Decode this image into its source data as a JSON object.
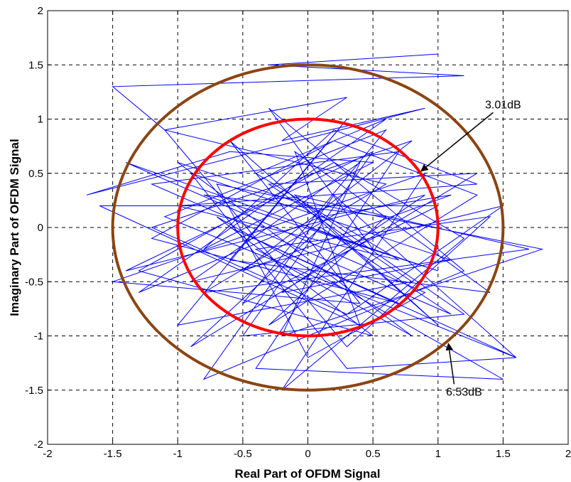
{
  "chart_data": {
    "type": "line",
    "title": "",
    "xlabel": "Real Part of OFDM Signal",
    "ylabel": "Imaginary Part of OFDM Signal",
    "xlim": [
      -2,
      2
    ],
    "ylim": [
      -2,
      2
    ],
    "grid": true,
    "xticks": [
      "-2",
      "-1.5",
      "-1",
      "-0.5",
      "0",
      "0.5",
      "1",
      "1.5",
      "2"
    ],
    "yticks": [
      "-2",
      "-1.5",
      "-1",
      "-0.5",
      "0",
      "0.5",
      "1",
      "1.5",
      "2"
    ],
    "colors": {
      "signal": "#0000ff",
      "inner_circle": "#ff0000",
      "outer_circle": "#8b4513"
    },
    "circles": [
      {
        "radius": 1.0,
        "label": "3.01dB",
        "color": "#ff0000"
      },
      {
        "radius": 1.5,
        "label": "6.53dB",
        "color": "#8b4513"
      }
    ],
    "annotations": [
      {
        "text": "3.01dB",
        "text_at": [
          1.5,
          1.1
        ],
        "arrow_to": [
          0.87,
          0.52
        ]
      },
      {
        "text": "6.53dB",
        "text_at": [
          1.2,
          -1.55
        ],
        "arrow_to": [
          1.08,
          -1.07
        ]
      }
    ],
    "series": [
      {
        "x": [
          1.0,
          -0.3,
          1.2,
          -1.5,
          -1.1,
          0.3,
          -0.2,
          0.9,
          -1.7,
          -0.6,
          0.5,
          -0.8,
          0.2,
          1.3,
          -1.0,
          0.7,
          -0.4,
          0.6,
          -1.3,
          0.1,
          1.1,
          -0.5,
          0.8,
          -1.2,
          0.3,
          1.5,
          -0.9,
          0.4,
          -0.2,
          1.8,
          -0.7,
          0.0,
          0.9,
          -1.4,
          0.5,
          -0.3,
          1.2,
          -0.8,
          0.2,
          1.6,
          -1.1,
          0.6,
          -0.5,
          1.0,
          -1.6,
          0.4,
          -0.1,
          1.4,
          -0.6,
          0.3,
          -1.0,
          0.8,
          -0.3,
          1.3,
          -0.9,
          0.1,
          1.1,
          -1.2,
          0.7,
          -0.4,
          1.5,
          -0.7,
          0.5,
          -1.3,
          0.2,
          1.2,
          -0.2,
          0.9,
          -1.5,
          0.4,
          -0.6,
          1.0,
          -0.1,
          1.7,
          -0.8,
          0.6,
          -1.1,
          0.3,
          1.4,
          -0.4,
          0.8,
          -1.0,
          0.0,
          1.2,
          -0.5,
          0.5,
          -1.4,
          0.9,
          -0.2,
          1.1,
          -0.9,
          0.3,
          1.6,
          -0.6,
          0.7,
          -1.2,
          0.2,
          1.3,
          -0.3,
          0.6,
          -0.8,
          1.0,
          0.0
        ],
        "y": [
          1.6,
          1.5,
          1.4,
          1.3,
          0.9,
          1.2,
          0.8,
          1.1,
          0.3,
          0.7,
          0.6,
          -0.2,
          0.9,
          0.4,
          0.2,
          -0.3,
          0.5,
          1.0,
          -0.6,
          0.1,
          0.3,
          -0.4,
          0.8,
          0.0,
          -0.8,
          0.2,
          -0.5,
          0.6,
          -1.0,
          -0.2,
          0.4,
          -1.2,
          -0.6,
          0.6,
          -0.2,
          1.1,
          -0.4,
          -1.4,
          0.3,
          -1.2,
          0.1,
          0.9,
          -0.7,
          0.2,
          0.2,
          -0.9,
          0.7,
          -0.6,
          -0.3,
          1.0,
          -0.9,
          -0.5,
          0.4,
          0.5,
          -1.1,
          0.0,
          -0.8,
          0.4,
          0.7,
          -1.3,
          -1.4,
          0.1,
          -1.0,
          -0.4,
          0.6,
          -0.1,
          -1.5,
          0.5,
          -0.5,
          -0.7,
          0.8,
          -0.9,
          0.3,
          -0.2,
          -0.6,
          0.4,
          0.9,
          -1.1,
          0.1,
          -0.2,
          -1.0,
          0.6,
          0.2,
          -0.8,
          -1.0,
          0.7,
          -0.4,
          0.3,
          -0.6,
          -0.3,
          0.5,
          -1.3,
          -1.2,
          0.0,
          -0.7,
          -0.1,
          0.8,
          0.3,
          -0.9,
          0.1,
          0.3,
          -0.4,
          0.0
        ]
      }
    ]
  }
}
